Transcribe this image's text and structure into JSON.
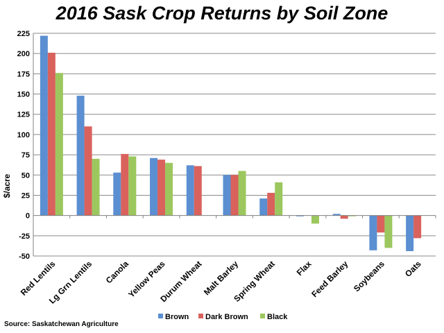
{
  "chart_data": {
    "type": "bar",
    "title": "2016 Sask Crop Returns by Soil Zone",
    "ylabel": "$/acre",
    "xlabel": "",
    "ylim": [
      -50,
      225
    ],
    "yticks": [
      -50,
      -25,
      0,
      25,
      50,
      75,
      100,
      125,
      150,
      175,
      200,
      225
    ],
    "grid": true,
    "legend": "bottom",
    "categories": [
      "Red Lentils",
      "Lg Grn Lentils",
      "Canola",
      "Yellow Peas",
      "Durum Wheat",
      "Malt Barley",
      "Spring Wheat",
      "Flax",
      "Feed Barley",
      "Soybeans",
      "Oats"
    ],
    "series": [
      {
        "name": "Brown",
        "color": "#5b8fd1",
        "values": [
          222,
          148,
          53,
          71,
          62,
          50,
          21,
          -1,
          2,
          -43,
          -44
        ]
      },
      {
        "name": "Dark Brown",
        "color": "#d9625d",
        "values": [
          201,
          110,
          76,
          69,
          61,
          50,
          28,
          0,
          -4,
          -21,
          -28
        ]
      },
      {
        "name": "Black",
        "color": "#9cc75f",
        "values": [
          176,
          70,
          73,
          65,
          null,
          55,
          41,
          -10,
          -1,
          -40,
          null
        ]
      }
    ],
    "source": "Source: Saskatchewan Agriculture"
  }
}
